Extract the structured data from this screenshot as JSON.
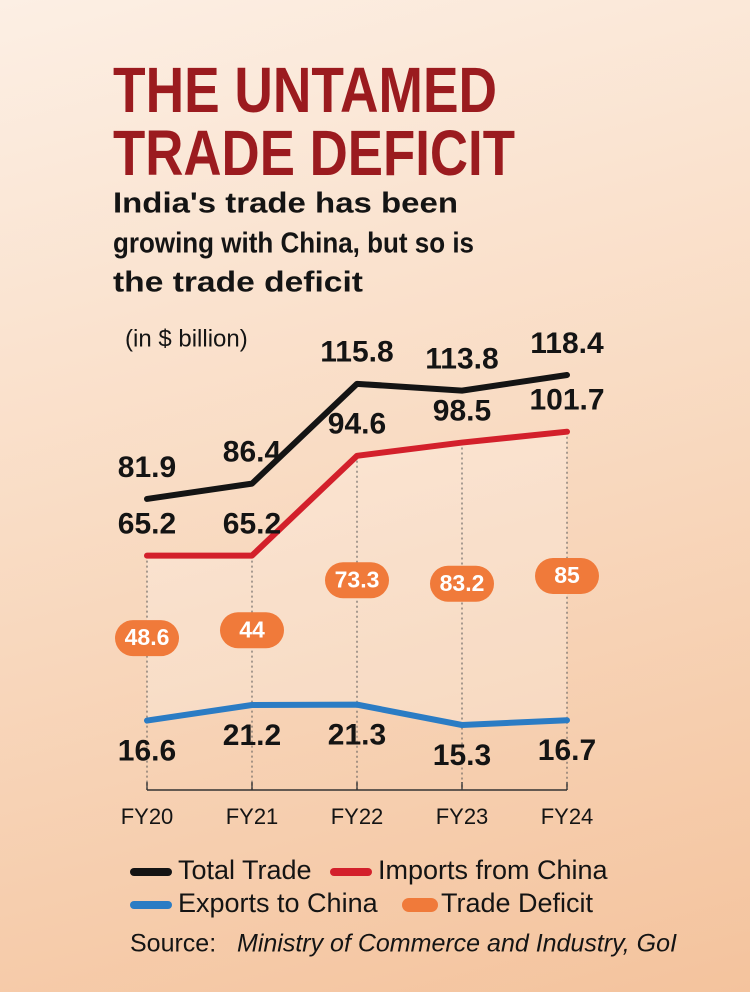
{
  "chart_data": {
    "type": "line",
    "title": [
      "THE UNTAMED",
      "TRADE DEFICIT"
    ],
    "subtitle": [
      "India's trade has been",
      "growing with China, but so is",
      "the trade deficit"
    ],
    "unit_label": "(in $ billion)",
    "categories": [
      "FY20",
      "FY21",
      "FY22",
      "FY23",
      "FY24"
    ],
    "series": [
      {
        "name": "Total Trade",
        "color": "#141414",
        "values": [
          81.9,
          86.4,
          115.8,
          113.8,
          118.4
        ]
      },
      {
        "name": "Imports from China",
        "color": "#d3202b",
        "values": [
          65.2,
          65.2,
          94.6,
          98.5,
          101.7
        ]
      },
      {
        "name": "Exports to China",
        "color": "#2b7cc4",
        "values": [
          16.6,
          21.2,
          21.3,
          15.3,
          16.7
        ]
      },
      {
        "name": "Trade Deficit",
        "color": "#f07a3a",
        "values": [
          48.6,
          44,
          73.3,
          83.2,
          85
        ],
        "style": "pill"
      }
    ],
    "source_label": "Source:",
    "source": "Ministry of Commerce and Industry, GoI"
  }
}
